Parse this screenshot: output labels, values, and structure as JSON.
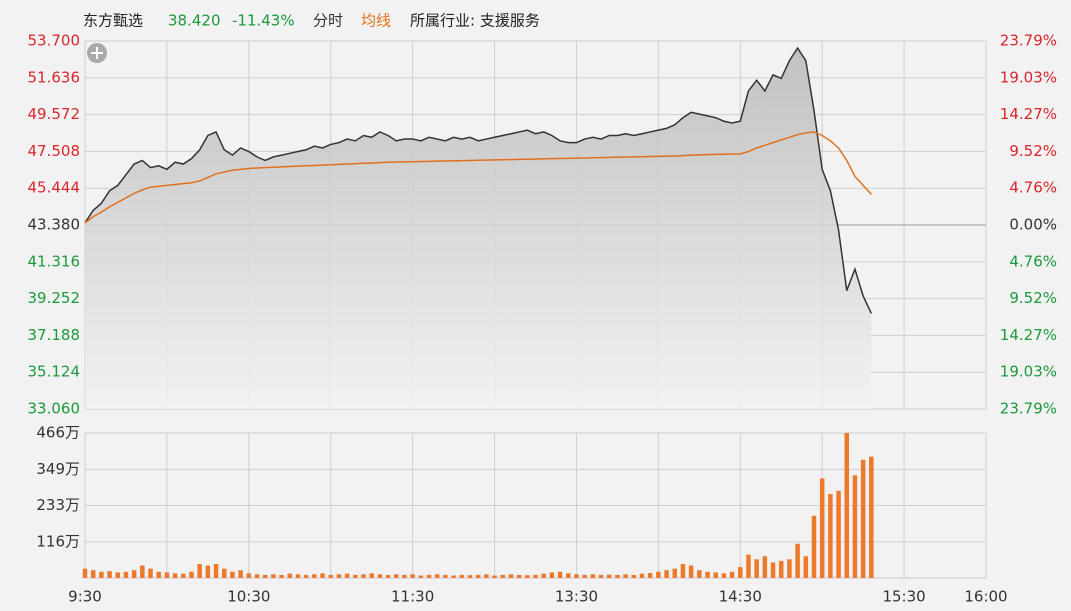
{
  "header": {
    "name": "东方甄选",
    "price": "38.420",
    "change": "-11.43%",
    "mode": "分时",
    "avg_label": "均线",
    "industry": "所属行业: 支援服务"
  },
  "chart_data": [
    {
      "type": "line",
      "x": [
        0,
        3,
        6,
        9,
        12,
        15,
        18,
        21,
        24,
        27,
        30,
        33,
        36,
        39,
        42,
        45,
        48,
        51,
        54,
        57,
        60,
        63,
        66,
        69,
        72,
        75,
        78,
        81,
        84,
        87,
        90,
        93,
        96,
        99,
        102,
        105,
        108,
        111,
        114,
        117,
        120,
        123,
        126,
        129,
        132,
        135,
        138,
        141,
        144,
        147,
        150,
        153,
        156,
        159,
        162,
        165,
        168,
        171,
        174,
        177,
        180,
        183,
        186,
        189,
        192,
        195,
        198,
        201,
        204,
        207,
        210,
        213,
        216,
        219,
        222,
        225,
        228,
        231,
        234,
        237,
        240,
        243,
        246,
        249,
        252,
        255,
        258,
        261,
        264,
        267,
        270,
        273,
        276,
        279,
        282,
        285,
        288
      ],
      "series": [
        {
          "color": "#333333",
          "values": [
            43.5,
            44.2,
            44.6,
            45.3,
            45.6,
            46.2,
            46.8,
            47.0,
            46.6,
            46.7,
            46.5,
            46.9,
            46.8,
            47.1,
            47.6,
            48.4,
            48.6,
            47.6,
            47.3,
            47.7,
            47.5,
            47.2,
            47.0,
            47.2,
            47.3,
            47.4,
            47.5,
            47.6,
            47.8,
            47.7,
            47.9,
            48.0,
            48.2,
            48.1,
            48.4,
            48.3,
            48.6,
            48.4,
            48.1,
            48.2,
            48.2,
            48.1,
            48.3,
            48.2,
            48.1,
            48.3,
            48.2,
            48.3,
            48.1,
            48.2,
            48.3,
            48.4,
            48.5,
            48.6,
            48.7,
            48.5,
            48.6,
            48.4,
            48.1,
            48.0,
            48.0,
            48.2,
            48.3,
            48.2,
            48.4,
            48.4,
            48.5,
            48.4,
            48.5,
            48.6,
            48.7,
            48.8,
            49.0,
            49.4,
            49.7,
            49.6,
            49.5,
            49.4,
            49.2,
            49.1,
            49.2,
            50.9,
            51.5,
            50.9,
            51.8,
            51.6,
            52.6,
            53.3,
            52.6,
            49.8,
            46.5,
            45.3,
            43.1,
            39.7,
            40.9,
            39.4,
            38.42
          ]
        },
        {
          "color": "#e0701e",
          "values": [
            43.5,
            43.85,
            44.1,
            44.4,
            44.65,
            44.9,
            45.15,
            45.35,
            45.5,
            45.55,
            45.6,
            45.65,
            45.7,
            45.75,
            45.85,
            46.05,
            46.25,
            46.35,
            46.45,
            46.5,
            46.55,
            46.58,
            46.6,
            46.62,
            46.64,
            46.66,
            46.68,
            46.7,
            46.72,
            46.74,
            46.76,
            46.78,
            46.8,
            46.82,
            46.84,
            46.86,
            46.88,
            46.9,
            46.91,
            46.92,
            46.93,
            46.94,
            46.95,
            46.96,
            46.97,
            46.98,
            46.99,
            47,
            47.01,
            47.02,
            47.03,
            47.04,
            47.05,
            47.06,
            47.07,
            47.08,
            47.09,
            47.1,
            47.11,
            47.12,
            47.13,
            47.14,
            47.15,
            47.16,
            47.17,
            47.18,
            47.19,
            47.2,
            47.21,
            47.22,
            47.23,
            47.24,
            47.25,
            47.27,
            47.29,
            47.31,
            47.33,
            47.34,
            47.35,
            47.36,
            47.37,
            47.5,
            47.7,
            47.85,
            48,
            48.15,
            48.3,
            48.45,
            48.55,
            48.6,
            48.4,
            48.1,
            47.7,
            47.0,
            46.1,
            45.6,
            45.1
          ]
        }
      ],
      "ylim": [
        33.06,
        53.7
      ],
      "yticks": [
        {
          "value": 53.7,
          "label": "53.700"
        },
        51.636,
        49.572,
        47.508,
        45.444,
        {
          "value": 43.38,
          "label": "43.380"
        },
        41.316,
        39.252,
        37.188,
        35.124,
        {
          "value": 33.06,
          "label": "33.060"
        }
      ],
      "y2lim": [
        -23.79,
        23.79
      ],
      "y2ticks": [
        {
          "value": 23.79,
          "label": "23.79%"
        },
        {
          "value": 19.03,
          "label": "19.03%"
        },
        {
          "value": 14.27,
          "label": "14.27%"
        },
        {
          "value": 9.52,
          "label": "9.52%"
        },
        {
          "value": 4.76,
          "label": "4.76%"
        },
        {
          "value": 0,
          "label": "0.00%"
        },
        {
          "value": -4.76,
          "label": "4.76%"
        },
        {
          "value": -9.52,
          "label": "9.52%"
        },
        {
          "value": -14.27,
          "label": "14.27%"
        },
        {
          "value": -19.03,
          "label": "19.03%"
        },
        {
          "value": -23.79,
          "label": "23.79%"
        }
      ],
      "up_color": "#d9262b",
      "down_color": "#1a9a3a",
      "grid": true
    },
    {
      "type": "bar",
      "color": "#ec7a2a",
      "values": [
        30,
        25,
        20,
        22,
        18,
        20,
        25,
        40,
        30,
        20,
        18,
        15,
        14,
        20,
        45,
        40,
        45,
        30,
        20,
        25,
        15,
        12,
        10,
        12,
        10,
        14,
        12,
        10,
        12,
        15,
        10,
        12,
        14,
        10,
        12,
        15,
        12,
        10,
        12,
        10,
        12,
        8,
        10,
        12,
        10,
        8,
        10,
        9,
        10,
        12,
        8,
        10,
        12,
        10,
        9,
        10,
        14,
        18,
        20,
        15,
        12,
        10,
        12,
        10,
        11,
        10,
        12,
        10,
        14,
        16,
        20,
        25,
        30,
        45,
        40,
        25,
        20,
        18,
        15,
        20,
        35,
        75,
        60,
        70,
        50,
        55,
        60,
        110,
        70,
        200,
        320,
        270,
        280,
        466,
        330,
        380,
        390
      ],
      "ylim": [
        0,
        466
      ],
      "yticks": [
        {
          "value": 466,
          "label": "466万"
        },
        {
          "value": 349,
          "label": "349万"
        },
        {
          "value": 233,
          "label": "233万"
        },
        {
          "value": 116,
          "label": "116万"
        }
      ],
      "xlim": [
        0,
        330
      ],
      "xticks": [
        {
          "value": 0,
          "label": "9:30"
        },
        {
          "value": 30,
          "label": null
        },
        {
          "value": 60,
          "label": "10:30"
        },
        {
          "value": 90,
          "label": null
        },
        {
          "value": 120,
          "label": "11:30"
        },
        {
          "value": 150,
          "label": null
        },
        {
          "value": 180,
          "label": "13:30"
        },
        {
          "value": 210,
          "label": null
        },
        {
          "value": 240,
          "label": "14:30"
        },
        {
          "value": 270,
          "label": null
        },
        {
          "value": 300,
          "label": "15:30"
        },
        {
          "value": 330,
          "label": "16:00"
        }
      ],
      "grid": true
    }
  ]
}
